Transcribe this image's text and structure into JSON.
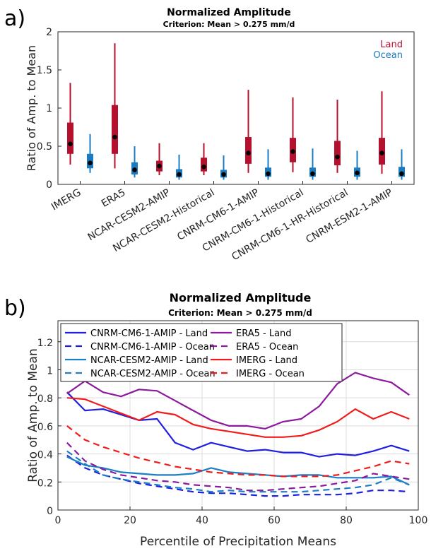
{
  "chart_data": [
    {
      "type": "box",
      "panel_label": "a)",
      "title": "Normalized Amplitude",
      "subtitle": "Criterion: Mean > 0.275 mm/d",
      "xlabel": "",
      "ylabel": "Ratio of Amp. to Mean",
      "ylim": [
        0,
        2
      ],
      "yticks": [
        "0",
        "0.5",
        "1",
        "1.5",
        "2"
      ],
      "ytick_values": [
        0,
        0.5,
        1,
        1.5,
        2
      ],
      "grid": false,
      "legend_position": "top-right",
      "legend": [
        {
          "name": "Land",
          "color": "#b5102e"
        },
        {
          "name": "Ocean",
          "color": "#1b7bc0"
        }
      ],
      "categories": [
        "IMERG",
        "ERA5",
        "NCAR-CESM2-AMIP",
        "NCAR-CESM2-Historical",
        "CNRM-CM6-1-AMIP",
        "CNRM-CM6-1-Historical",
        "CNRM-CM6-1-HR-Historical",
        "CNRM-ESM2-1-AMIP"
      ],
      "series": [
        {
          "name": "Land",
          "color": "#b5102e",
          "boxes": [
            {
              "whisker_low": 0.26,
              "q1": 0.4,
              "median": 0.53,
              "q3": 0.81,
              "whisker_high": 1.33
            },
            {
              "whisker_low": 0.21,
              "q1": 0.4,
              "median": 0.62,
              "q3": 1.04,
              "whisker_high": 1.85
            },
            {
              "whisker_low": 0.12,
              "q1": 0.17,
              "median": 0.24,
              "q3": 0.31,
              "whisker_high": 0.54
            },
            {
              "whisker_low": 0.12,
              "q1": 0.17,
              "median": 0.23,
              "q3": 0.35,
              "whisker_high": 0.54
            },
            {
              "whisker_low": 0.15,
              "q1": 0.27,
              "median": 0.41,
              "q3": 0.62,
              "whisker_high": 1.24
            },
            {
              "whisker_low": 0.16,
              "q1": 0.29,
              "median": 0.43,
              "q3": 0.61,
              "whisker_high": 1.14
            },
            {
              "whisker_low": 0.15,
              "q1": 0.25,
              "median": 0.36,
              "q3": 0.57,
              "whisker_high": 1.11
            },
            {
              "whisker_low": 0.14,
              "q1": 0.26,
              "median": 0.41,
              "q3": 0.61,
              "whisker_high": 1.22
            }
          ]
        },
        {
          "name": "Ocean",
          "color": "#1b7bc0",
          "boxes": [
            {
              "whisker_low": 0.15,
              "q1": 0.21,
              "median": 0.28,
              "q3": 0.4,
              "whisker_high": 0.66
            },
            {
              "whisker_low": 0.09,
              "q1": 0.13,
              "median": 0.19,
              "q3": 0.29,
              "whisker_high": 0.5
            },
            {
              "whisker_low": 0.06,
              "q1": 0.09,
              "median": 0.13,
              "q3": 0.2,
              "whisker_high": 0.39
            },
            {
              "whisker_low": 0.06,
              "q1": 0.09,
              "median": 0.13,
              "q3": 0.19,
              "whisker_high": 0.38
            },
            {
              "whisker_low": 0.06,
              "q1": 0.1,
              "median": 0.14,
              "q3": 0.22,
              "whisker_high": 0.46
            },
            {
              "whisker_low": 0.06,
              "q1": 0.1,
              "median": 0.14,
              "q3": 0.22,
              "whisker_high": 0.47
            },
            {
              "whisker_low": 0.06,
              "q1": 0.1,
              "median": 0.15,
              "q3": 0.22,
              "whisker_high": 0.44
            },
            {
              "whisker_low": 0.06,
              "q1": 0.1,
              "median": 0.14,
              "q3": 0.23,
              "whisker_high": 0.46
            }
          ]
        }
      ]
    },
    {
      "type": "line",
      "panel_label": "b)",
      "title": "Normalized Amplitude",
      "subtitle": "Criterion: Mean > 0.275 mm/d",
      "xlabel": "Percentile of Precipitation Means",
      "ylabel": "Ratio of Amp. to Mean",
      "xlim": [
        0,
        100
      ],
      "ylim": [
        0,
        1.35
      ],
      "xticks": [
        "0",
        "20",
        "40",
        "60",
        "80",
        "100"
      ],
      "xtick_values": [
        0,
        20,
        40,
        60,
        80,
        100
      ],
      "yticks": [
        "0",
        "0.2",
        "0.4",
        "0.6",
        "0.8",
        "1",
        "1.2"
      ],
      "ytick_values": [
        0,
        0.2,
        0.4,
        0.6,
        0.8,
        1,
        1.2
      ],
      "grid": true,
      "legend_position": "top",
      "x": [
        2.5,
        7.5,
        12.5,
        17.5,
        22.5,
        27.5,
        32.5,
        37.5,
        42.5,
        47.5,
        52.5,
        57.5,
        62.5,
        67.5,
        72.5,
        77.5,
        82.5,
        87.5,
        92.5,
        97.5
      ],
      "series": [
        {
          "name": "CNRM-CM6-1-AMIP - Land",
          "color": "#1f1fe0",
          "dash": "solid",
          "values": [
            0.84,
            0.71,
            0.72,
            0.68,
            0.64,
            0.65,
            0.48,
            0.43,
            0.48,
            0.45,
            0.42,
            0.43,
            0.41,
            0.41,
            0.38,
            0.4,
            0.39,
            0.42,
            0.46,
            0.42
          ]
        },
        {
          "name": "CNRM-CM6-1-AMIP - Ocean",
          "color": "#1f1fe0",
          "dash": "dashed",
          "values": [
            0.39,
            0.3,
            0.25,
            0.22,
            0.19,
            0.17,
            0.15,
            0.13,
            0.12,
            0.12,
            0.11,
            0.1,
            0.1,
            0.11,
            0.11,
            0.11,
            0.12,
            0.14,
            0.14,
            0.13
          ]
        },
        {
          "name": "NCAR-CESM2-AMIP - Land",
          "color": "#1a7fc4",
          "dash": "solid",
          "values": [
            0.38,
            0.32,
            0.3,
            0.27,
            0.26,
            0.25,
            0.25,
            0.26,
            0.3,
            0.27,
            0.26,
            0.25,
            0.24,
            0.25,
            0.25,
            0.23,
            0.23,
            0.23,
            0.24,
            0.18
          ]
        },
        {
          "name": "NCAR-CESM2-AMIP - Ocean",
          "color": "#1a7fc4",
          "dash": "dashed",
          "values": [
            0.42,
            0.33,
            0.25,
            0.22,
            0.2,
            0.18,
            0.16,
            0.15,
            0.13,
            0.14,
            0.13,
            0.13,
            0.13,
            0.13,
            0.14,
            0.15,
            0.16,
            0.18,
            0.23,
            0.18
          ]
        },
        {
          "name": "ERA5 - Land",
          "color": "#8b1a9c",
          "dash": "solid",
          "values": [
            0.83,
            0.92,
            0.84,
            0.81,
            0.86,
            0.85,
            0.78,
            0.71,
            0.64,
            0.6,
            0.6,
            0.58,
            0.63,
            0.65,
            0.74,
            0.9,
            0.98,
            0.94,
            0.91,
            0.82
          ]
        },
        {
          "name": "ERA5 - Ocean",
          "color": "#8b1a9c",
          "dash": "dashed",
          "values": [
            0.48,
            0.35,
            0.29,
            0.25,
            0.23,
            0.21,
            0.2,
            0.18,
            0.17,
            0.16,
            0.14,
            0.14,
            0.15,
            0.16,
            0.17,
            0.19,
            0.21,
            0.26,
            0.24,
            0.22
          ]
        },
        {
          "name": "IMERG - Land",
          "color": "#f21b1b",
          "dash": "solid",
          "values": [
            0.8,
            0.79,
            0.74,
            0.69,
            0.64,
            0.7,
            0.68,
            0.61,
            0.58,
            0.56,
            0.54,
            0.52,
            0.52,
            0.53,
            0.57,
            0.63,
            0.72,
            0.65,
            0.7,
            0.65
          ]
        },
        {
          "name": "IMERG - Ocean",
          "color": "#f21b1b",
          "dash": "dashed",
          "values": [
            0.6,
            0.5,
            0.45,
            0.41,
            0.37,
            0.34,
            0.31,
            0.29,
            0.27,
            0.26,
            0.25,
            0.25,
            0.24,
            0.24,
            0.24,
            0.25,
            0.28,
            0.31,
            0.35,
            0.33
          ]
        }
      ]
    }
  ]
}
